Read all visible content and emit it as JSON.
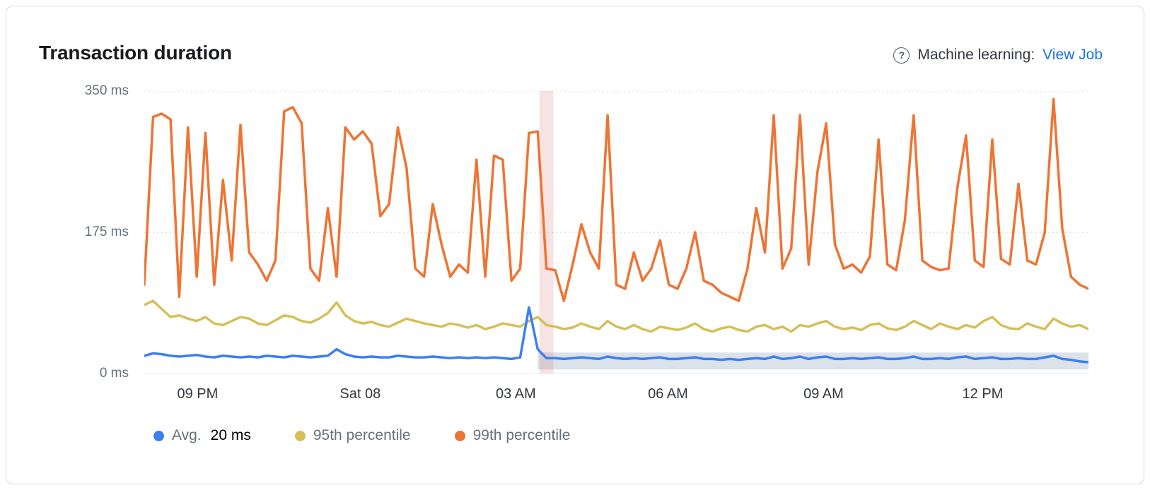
{
  "colors": {
    "link": "#1a73e8",
    "panel_border": "#d3dae6",
    "title_text": "#1a1c21",
    "axis_text_y": "#69707d",
    "axis_text_x": "#343741",
    "legend_text": "#69707d",
    "avg_series": "#3d7ff2",
    "p95_series": "#d6bf57",
    "p99_series": "#ee7433",
    "annotation_band": "rgba(200,70,70,0.15)",
    "model_bounds_band": "rgba(130,150,175,0.28)",
    "gridline": "#d8d8d8"
  },
  "panel": {
    "title": "Transaction duration",
    "ml_label": "Machine learning:",
    "ml_link": "View Job",
    "help_icon_glyph": "?"
  },
  "chart_data": {
    "type": "line",
    "title": "Transaction duration",
    "unit": "ms",
    "ylim": [
      0,
      350
    ],
    "n_points": 109,
    "grid": "horizontal-dotted",
    "legend_position": "bottom",
    "y_ticks": [
      {
        "label": "0 ms",
        "value": 0
      },
      {
        "label": "175 ms",
        "value": 175
      },
      {
        "label": "350 ms",
        "value": 350
      }
    ],
    "x_ticks": [
      {
        "label": "09 PM",
        "index": 6.1
      },
      {
        "label": "Sat 08",
        "index": 24.7
      },
      {
        "label": "03 AM",
        "index": 42.5
      },
      {
        "label": "06 AM",
        "index": 59.9
      },
      {
        "label": "09 AM",
        "index": 77.7
      },
      {
        "label": "12 PM",
        "index": 95.9
      }
    ],
    "series": [
      {
        "name": "Avg.",
        "color": "#3d7ff2",
        "values": [
          22,
          25,
          24,
          22,
          21,
          22,
          23,
          21,
          20,
          22,
          21,
          20,
          21,
          20,
          22,
          21,
          20,
          22,
          21,
          20,
          21,
          22,
          30,
          24,
          21,
          20,
          21,
          20,
          20,
          22,
          21,
          20,
          20,
          21,
          20,
          19,
          20,
          19,
          20,
          19,
          20,
          19,
          18,
          20,
          82,
          30,
          19,
          19,
          18,
          19,
          20,
          19,
          18,
          21,
          19,
          18,
          19,
          18,
          19,
          20,
          18,
          18,
          19,
          20,
          18,
          18,
          17,
          18,
          17,
          18,
          19,
          18,
          21,
          18,
          19,
          21,
          18,
          20,
          21,
          18,
          18,
          19,
          18,
          19,
          20,
          18,
          18,
          19,
          21,
          18,
          18,
          19,
          18,
          20,
          21,
          18,
          19,
          20,
          18,
          18,
          19,
          18,
          18,
          20,
          22,
          18,
          17,
          15,
          14
        ]
      },
      {
        "name": "95th percentile",
        "color": "#d6bf57",
        "values": [
          85,
          90,
          80,
          70,
          72,
          68,
          65,
          70,
          62,
          60,
          65,
          70,
          68,
          62,
          60,
          66,
          72,
          70,
          65,
          63,
          68,
          75,
          88,
          72,
          65,
          62,
          64,
          60,
          58,
          63,
          68,
          65,
          62,
          60,
          58,
          62,
          60,
          57,
          60,
          55,
          58,
          62,
          60,
          58,
          65,
          70,
          60,
          58,
          55,
          57,
          62,
          58,
          55,
          65,
          58,
          55,
          60,
          55,
          52,
          58,
          56,
          54,
          57,
          62,
          55,
          52,
          56,
          58,
          54,
          52,
          58,
          60,
          55,
          58,
          52,
          60,
          58,
          62,
          65,
          58,
          55,
          57,
          54,
          60,
          62,
          56,
          54,
          58,
          65,
          60,
          55,
          62,
          58,
          55,
          60,
          57,
          65,
          70,
          60,
          56,
          55,
          62,
          58,
          55,
          68,
          62,
          58,
          60,
          55
        ]
      },
      {
        "name": "99th percentile",
        "color": "#ee7433",
        "values": [
          110,
          318,
          322,
          315,
          95,
          305,
          120,
          298,
          110,
          240,
          140,
          308,
          150,
          135,
          115,
          140,
          325,
          330,
          310,
          130,
          115,
          205,
          120,
          305,
          290,
          300,
          285,
          195,
          210,
          305,
          255,
          130,
          120,
          210,
          160,
          120,
          135,
          125,
          265,
          120,
          270,
          265,
          115,
          130,
          298,
          300,
          130,
          128,
          90,
          135,
          185,
          150,
          130,
          320,
          110,
          105,
          150,
          115,
          130,
          165,
          110,
          105,
          130,
          175,
          115,
          110,
          100,
          95,
          90,
          130,
          205,
          150,
          320,
          130,
          155,
          320,
          135,
          250,
          310,
          160,
          130,
          135,
          125,
          145,
          290,
          135,
          128,
          190,
          320,
          140,
          132,
          128,
          130,
          230,
          295,
          140,
          132,
          290,
          142,
          135,
          235,
          140,
          135,
          175,
          340,
          180,
          120,
          110,
          105
        ]
      }
    ],
    "annotation": {
      "type": "vertical-band",
      "from_index": 45.2,
      "to_index": 46.8,
      "color": "rgba(200,70,70,0.15)"
    },
    "model_bounds": {
      "from_index": 45,
      "to_index": 108,
      "lower": 5,
      "upper": 26,
      "color": "rgba(130,150,175,0.28)"
    },
    "legend": [
      {
        "label": "Avg.",
        "value": "20 ms",
        "color": "#3d7ff2"
      },
      {
        "label": "95th percentile",
        "value": null,
        "color": "#d6bf57"
      },
      {
        "label": "99th percentile",
        "value": null,
        "color": "#ee7433"
      }
    ]
  }
}
